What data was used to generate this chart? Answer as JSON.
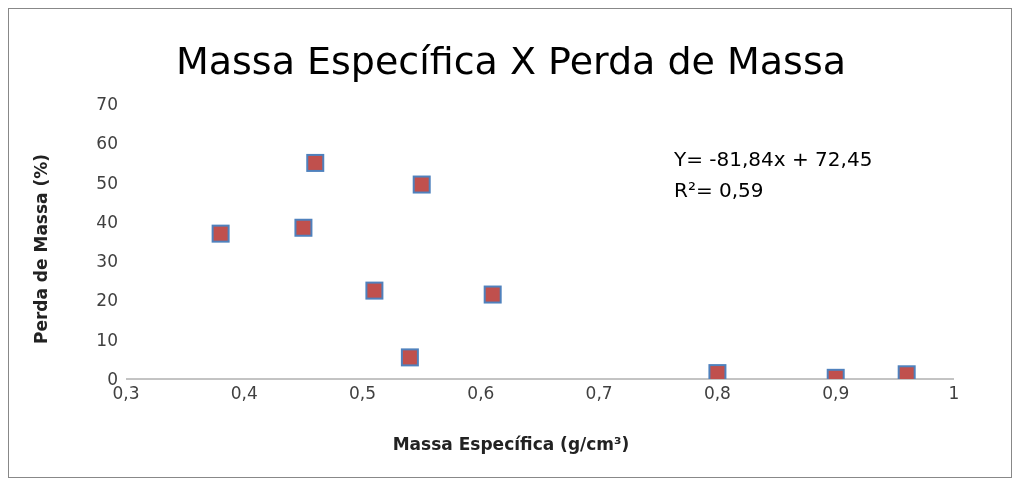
{
  "chart_data": {
    "type": "scatter",
    "title": "Massa Específica X Perda de Massa",
    "xlabel": "Massa Específica (g/cm³)",
    "ylabel": "Perda de Massa (%)",
    "annotations": [
      "Y= -81,84x + 72,45",
      "R²= 0,59"
    ],
    "x": [
      0.38,
      0.45,
      0.46,
      0.51,
      0.54,
      0.55,
      0.61,
      0.8,
      0.9,
      0.96
    ],
    "series": [
      {
        "color": "#c0504d",
        "values": [
          37,
          38.5,
          55,
          22.5,
          5.5,
          49.5,
          21.5,
          1.5,
          0.3,
          1.2
        ]
      }
    ],
    "xlim": [
      0.3,
      1
    ],
    "xticks": [
      {
        "value": 0.3,
        "label": "0,3"
      },
      {
        "value": 0.4,
        "label": "0,4"
      },
      {
        "value": 0.5,
        "label": "0,5"
      },
      {
        "value": 0.6,
        "label": "0,6"
      },
      {
        "value": 0.7,
        "label": "0,7"
      },
      {
        "value": 0.8,
        "label": "0,8"
      },
      {
        "value": 0.9,
        "label": "0,9"
      },
      1
    ],
    "ylim": [
      0,
      70
    ],
    "yticks": [
      0,
      10,
      20,
      30,
      40,
      50,
      60,
      70
    ],
    "grid": false,
    "legend": false,
    "marker": "square"
  }
}
